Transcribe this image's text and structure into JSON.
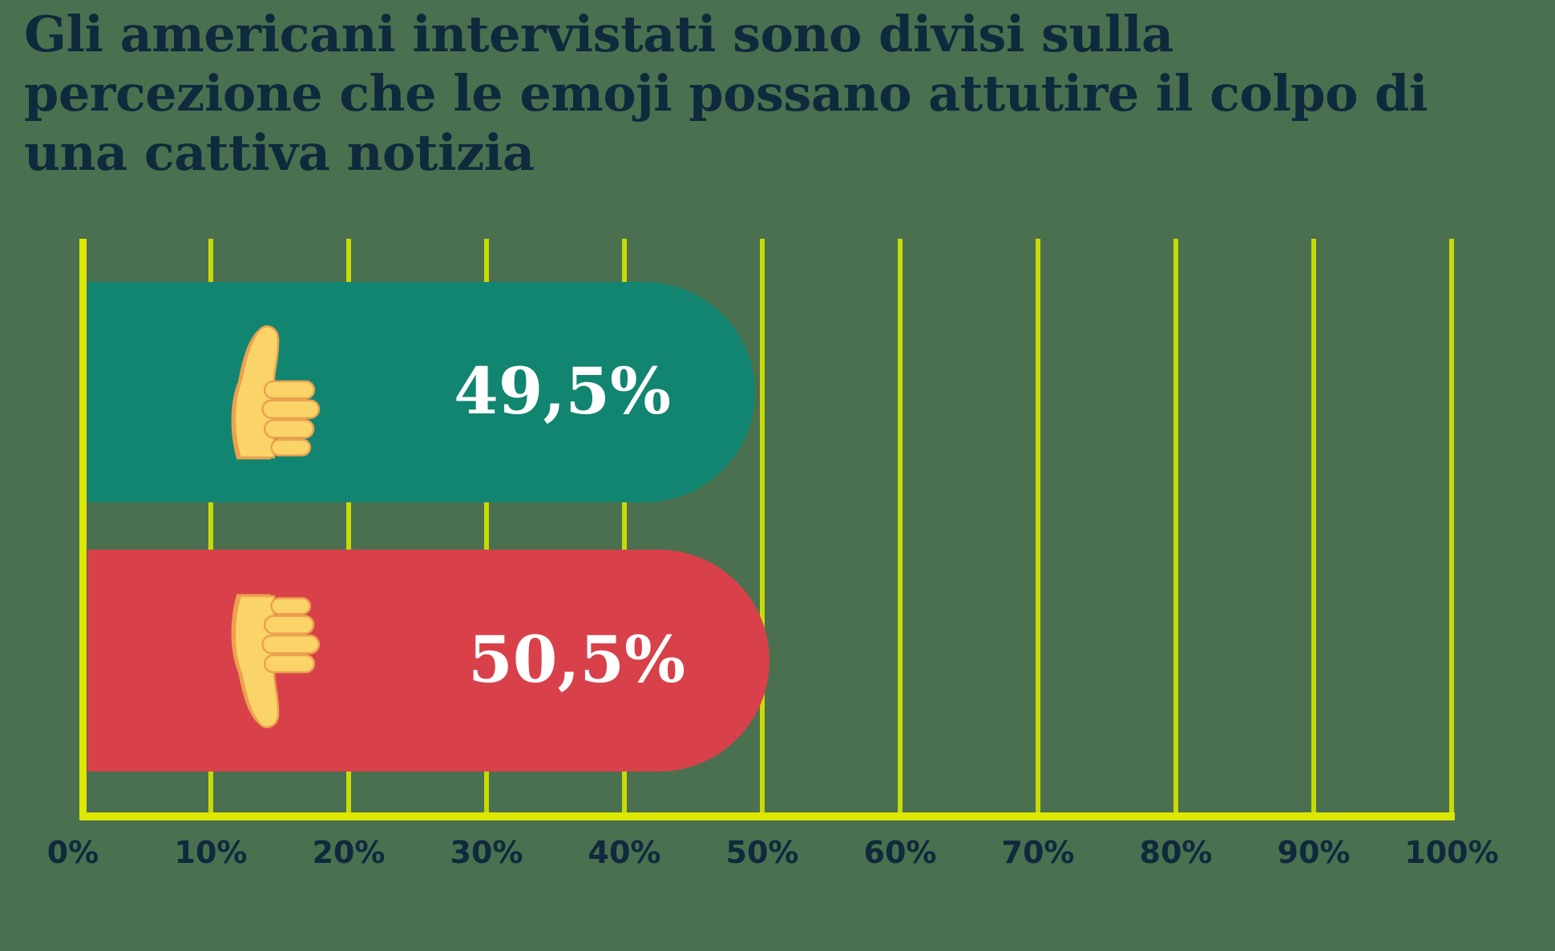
{
  "title": {
    "lines": [
      "Gli americani intervistati sono divisi sulla",
      "percezione che le emoji possano attutire il colpo di",
      "una cattiva notizia"
    ],
    "full": "Gli americani intervistati sono divisi sulla percezione che le emoji possano attutire il colpo di una cattiva notizia"
  },
  "chart_data": {
    "type": "bar",
    "orientation": "horizontal",
    "title": "Gli americani intervistati sono divisi sulla percezione che le emoji possano attutire il colpo di una cattiva notizia",
    "categories": [
      "thumbs-up",
      "thumbs-down"
    ],
    "values": [
      49.5,
      50.5
    ],
    "value_labels": [
      "49,5%",
      "50,5%"
    ],
    "bar_colors": [
      "#118570",
      "#D8414A"
    ],
    "xlim": [
      0,
      100
    ],
    "x_tick_step": 10,
    "x_ticks": [
      "0%",
      "10%",
      "20%",
      "30%",
      "40%",
      "50%",
      "60%",
      "70%",
      "80%",
      "90%",
      "100%"
    ],
    "grid": true,
    "legend": false
  },
  "colors": {
    "background": "#4A7050",
    "title_text": "#0F2A3C",
    "tick_text": "#0F2A3C",
    "value_text": "#FFFFFF",
    "bar_positive": "#118570",
    "bar_negative": "#D8414A",
    "gridline": "#C9D908",
    "axis": "#DCE702",
    "emoji_fill": "#FBD469",
    "emoji_outline": "#ECA24F"
  }
}
